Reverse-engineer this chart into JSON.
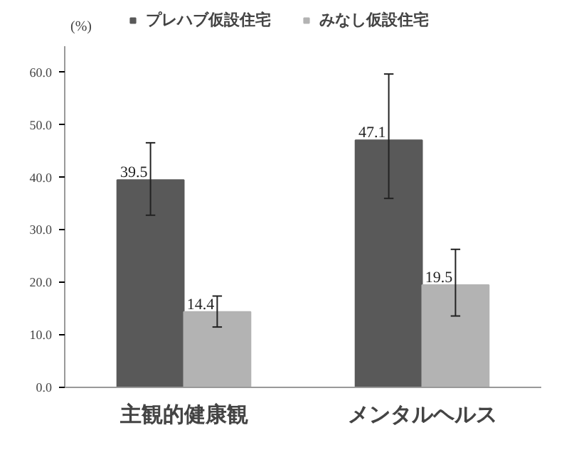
{
  "chart_data": {
    "type": "bar",
    "ylabel": "(%)",
    "categories": [
      "主観的健康観",
      "メンタルヘルス"
    ],
    "series": [
      {
        "name": "プレハブ仮設住宅",
        "color": "#595959",
        "values": [
          39.5,
          47.1
        ],
        "errors": [
          [
            32.8,
            46.6
          ],
          [
            36.0,
            59.7
          ]
        ]
      },
      {
        "name": "みなし仮設住宅",
        "color": "#b3b3b3",
        "values": [
          14.4,
          19.5
        ],
        "errors": [
          [
            11.5,
            17.4
          ],
          [
            13.6,
            26.3
          ]
        ]
      }
    ],
    "ylim": [
      0,
      65
    ],
    "yticks": [
      {
        "value": 0,
        "label": "0.0"
      },
      {
        "value": 10,
        "label": "10.0"
      },
      {
        "value": 20,
        "label": "20.0"
      },
      {
        "value": 30,
        "label": "30.0"
      },
      {
        "value": 40,
        "label": "40.0"
      },
      {
        "value": 50,
        "label": "50.0"
      },
      {
        "value": 60,
        "label": "60.0"
      }
    ],
    "data_labels": true,
    "legend": "top",
    "grid": false
  }
}
